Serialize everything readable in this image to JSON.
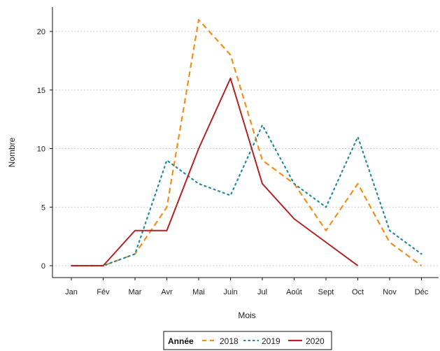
{
  "chart_data": {
    "type": "line",
    "categories": [
      "Jan",
      "Fév",
      "Mar",
      "Avr",
      "Mai",
      "Juin",
      "Jul",
      "Août",
      "Sept",
      "Oct",
      "Nov",
      "Déc"
    ],
    "xlabel": "Mois",
    "ylabel": "Nombre",
    "ylim": [
      0,
      21
    ],
    "yticks": [
      0,
      5,
      10,
      15,
      20
    ],
    "grid": "horizontal-dotted",
    "legend": {
      "title": "Année",
      "position": "bottom"
    },
    "series": [
      {
        "name": "2018",
        "color": "#f28e1c",
        "dash": "dashed",
        "values": [
          0,
          0,
          1,
          5,
          21,
          18,
          9,
          7,
          3,
          7,
          2,
          0
        ]
      },
      {
        "name": "2019",
        "color": "#1f8a9e",
        "dash": "dotted",
        "values": [
          0,
          0,
          1,
          9,
          7,
          6,
          12,
          7,
          5,
          11,
          3,
          1
        ]
      },
      {
        "name": "2020",
        "color": "#b22222",
        "dash": "solid",
        "values": [
          0,
          0,
          3,
          3,
          10,
          16,
          7,
          4,
          2,
          0,
          null,
          null
        ]
      }
    ]
  }
}
